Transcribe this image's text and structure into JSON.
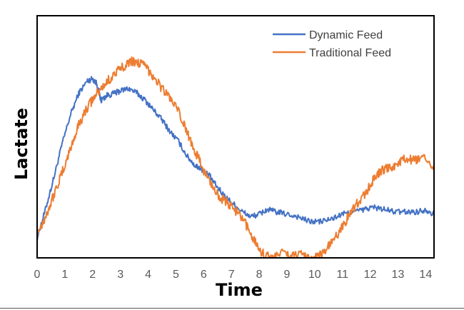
{
  "chart_data": {
    "type": "line",
    "title": "",
    "xlabel": "Time",
    "ylabel": "Lactate",
    "xlim": [
      0,
      14.3
    ],
    "ylim": [
      0,
      1
    ],
    "x_ticks": [
      "0",
      "1",
      "2",
      "3",
      "4",
      "5",
      "6",
      "7",
      "8",
      "9",
      "10",
      "11",
      "12",
      "13",
      "14"
    ],
    "y_ticks": [],
    "grid": false,
    "legend_position": "top-right",
    "series": [
      {
        "name": "Dynamic Feed",
        "color": "#4472C4",
        "x": [
          0,
          0.3,
          0.6,
          0.9,
          1.2,
          1.5,
          1.8,
          2.0,
          2.15,
          2.3,
          2.5,
          2.8,
          3.0,
          3.3,
          3.6,
          3.9,
          4.2,
          4.5,
          4.8,
          5.1,
          5.4,
          5.7,
          5.9,
          6.2,
          6.5,
          6.8,
          7.1,
          7.4,
          7.7,
          8.0,
          8.3,
          8.6,
          9.0,
          9.4,
          9.8,
          10.2,
          10.6,
          11.0,
          11.4,
          11.8,
          12.1,
          12.5,
          12.9,
          13.3,
          13.7,
          14.0,
          14.3
        ],
        "values": [
          0.08,
          0.2,
          0.33,
          0.47,
          0.59,
          0.68,
          0.73,
          0.74,
          0.72,
          0.65,
          0.67,
          0.68,
          0.69,
          0.7,
          0.68,
          0.65,
          0.61,
          0.57,
          0.52,
          0.48,
          0.42,
          0.38,
          0.37,
          0.34,
          0.29,
          0.25,
          0.22,
          0.19,
          0.17,
          0.18,
          0.2,
          0.19,
          0.18,
          0.17,
          0.15,
          0.15,
          0.16,
          0.18,
          0.19,
          0.2,
          0.21,
          0.2,
          0.19,
          0.19,
          0.19,
          0.2,
          0.18
        ]
      },
      {
        "name": "Traditional Feed",
        "color": "#ED7D31",
        "x": [
          0,
          0.3,
          0.6,
          0.9,
          1.2,
          1.5,
          1.8,
          2.1,
          2.4,
          2.7,
          3.0,
          3.3,
          3.6,
          3.9,
          4.2,
          4.5,
          4.8,
          5.1,
          5.4,
          5.7,
          6.0,
          6.3,
          6.6,
          6.9,
          7.2,
          7.5,
          7.8,
          8.1,
          8.4,
          8.8,
          9.2,
          9.6,
          10.0,
          10.3,
          10.6,
          10.9,
          11.2,
          11.5,
          11.8,
          12.1,
          12.4,
          12.7,
          13.0,
          13.3,
          13.6,
          13.9,
          14.3
        ],
        "values": [
          0.1,
          0.17,
          0.26,
          0.35,
          0.45,
          0.55,
          0.62,
          0.67,
          0.71,
          0.75,
          0.78,
          0.81,
          0.81,
          0.79,
          0.75,
          0.7,
          0.66,
          0.6,
          0.52,
          0.44,
          0.36,
          0.3,
          0.25,
          0.22,
          0.19,
          0.14,
          0.08,
          0.02,
          0.0,
          0.02,
          0.01,
          0.01,
          0.0,
          0.02,
          0.06,
          0.11,
          0.17,
          0.22,
          0.26,
          0.32,
          0.36,
          0.37,
          0.39,
          0.41,
          0.4,
          0.41,
          0.38
        ]
      }
    ]
  }
}
